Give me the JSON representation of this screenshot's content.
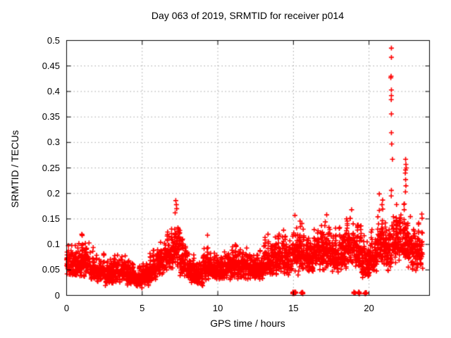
{
  "chart_data": {
    "type": "scatter",
    "title": "Day 063 of 2019, SRMTID for receiver p014",
    "xlabel": "GPS time / hours",
    "ylabel": "SRMTID / TECUs",
    "xlim": [
      0,
      24
    ],
    "ylim": [
      0,
      0.5
    ],
    "xticks": [
      0,
      5,
      10,
      15,
      20
    ],
    "xtick_labels": [
      "0",
      "5",
      "10",
      "15",
      "20"
    ],
    "yticks": [
      0,
      0.05,
      0.1,
      0.15,
      0.2,
      0.25,
      0.3,
      0.35,
      0.4,
      0.45,
      0.5
    ],
    "ytick_labels": [
      "0",
      "0.05",
      "0.1",
      "0.15",
      "0.2",
      "0.25",
      "0.3",
      "0.35",
      "0.4",
      "0.45",
      "0.5"
    ],
    "grid": {
      "show": true,
      "style": "dotted",
      "color": "#a0a0a0"
    },
    "legend": "none",
    "series_name": "SRMTID",
    "marker": {
      "shape": "plus",
      "color": "#ff0000",
      "size": 7
    },
    "points_per_hour": 140,
    "band_segments": [
      [
        0.0,
        0.5,
        0.03,
        0.105,
        0.06
      ],
      [
        0.5,
        1.0,
        0.02,
        0.11,
        0.058
      ],
      [
        1.0,
        1.5,
        0.025,
        0.123,
        0.062
      ],
      [
        1.5,
        2.0,
        0.02,
        0.095,
        0.055
      ],
      [
        2.0,
        2.5,
        0.015,
        0.09,
        0.05
      ],
      [
        2.5,
        3.0,
        0.01,
        0.082,
        0.046
      ],
      [
        3.0,
        3.5,
        0.012,
        0.09,
        0.05
      ],
      [
        3.5,
        4.0,
        0.015,
        0.098,
        0.052
      ],
      [
        4.0,
        4.5,
        0.01,
        0.08,
        0.044
      ],
      [
        4.5,
        5.0,
        0.008,
        0.065,
        0.038
      ],
      [
        5.0,
        5.5,
        0.012,
        0.075,
        0.042
      ],
      [
        5.5,
        6.0,
        0.02,
        0.095,
        0.05
      ],
      [
        6.0,
        6.5,
        0.025,
        0.11,
        0.057
      ],
      [
        6.5,
        7.0,
        0.03,
        0.135,
        0.066
      ],
      [
        7.0,
        7.5,
        0.04,
        0.165,
        0.095
      ],
      [
        7.5,
        8.0,
        0.025,
        0.12,
        0.065
      ],
      [
        8.0,
        8.5,
        0.015,
        0.09,
        0.05
      ],
      [
        8.5,
        9.0,
        0.012,
        0.075,
        0.044
      ],
      [
        9.0,
        9.5,
        0.02,
        0.1,
        0.054
      ],
      [
        9.5,
        10.0,
        0.02,
        0.09,
        0.05
      ],
      [
        10.0,
        10.5,
        0.018,
        0.092,
        0.05
      ],
      [
        10.5,
        11.0,
        0.022,
        0.1,
        0.054
      ],
      [
        11.0,
        11.5,
        0.022,
        0.105,
        0.055
      ],
      [
        11.5,
        12.0,
        0.02,
        0.1,
        0.05
      ],
      [
        12.0,
        12.5,
        0.018,
        0.092,
        0.05
      ],
      [
        12.5,
        13.0,
        0.022,
        0.1,
        0.054
      ],
      [
        13.0,
        13.5,
        0.025,
        0.115,
        0.058
      ],
      [
        13.5,
        14.0,
        0.025,
        0.122,
        0.06
      ],
      [
        14.0,
        14.5,
        0.03,
        0.132,
        0.064
      ],
      [
        14.5,
        15.0,
        0.025,
        0.125,
        0.06
      ],
      [
        15.0,
        15.5,
        0.028,
        0.155,
        0.066
      ],
      [
        15.5,
        16.0,
        0.03,
        0.145,
        0.07
      ],
      [
        16.0,
        16.5,
        0.03,
        0.135,
        0.07
      ],
      [
        16.5,
        17.0,
        0.035,
        0.148,
        0.075
      ],
      [
        17.0,
        17.5,
        0.035,
        0.155,
        0.08
      ],
      [
        17.5,
        18.0,
        0.03,
        0.14,
        0.075
      ],
      [
        18.0,
        18.5,
        0.035,
        0.145,
        0.075
      ],
      [
        18.5,
        19.0,
        0.04,
        0.165,
        0.085
      ],
      [
        19.0,
        19.5,
        0.035,
        0.155,
        0.08
      ],
      [
        19.5,
        20.0,
        0.015,
        0.12,
        0.058
      ],
      [
        20.0,
        20.5,
        0.025,
        0.13,
        0.068
      ],
      [
        20.5,
        21.0,
        0.035,
        0.185,
        0.085
      ],
      [
        21.0,
        21.5,
        0.035,
        0.16,
        0.08
      ],
      [
        21.5,
        22.0,
        0.045,
        0.185,
        0.095
      ],
      [
        22.0,
        22.5,
        0.05,
        0.19,
        0.1
      ],
      [
        22.5,
        23.0,
        0.035,
        0.165,
        0.09
      ],
      [
        23.0,
        23.55,
        0.03,
        0.16,
        0.105
      ]
    ],
    "outlier_points": [
      [
        7.22,
        0.186
      ],
      [
        7.26,
        0.178
      ],
      [
        7.28,
        0.17
      ],
      [
        7.18,
        0.162
      ],
      [
        9.32,
        0.118
      ],
      [
        13.32,
        0.12
      ],
      [
        14.35,
        0.128
      ],
      [
        15.1,
        0.157
      ],
      [
        15.56,
        0.141
      ],
      [
        17.2,
        0.158
      ],
      [
        18.85,
        0.168
      ],
      [
        20.68,
        0.199
      ],
      [
        20.9,
        0.187
      ],
      [
        20.86,
        0.178
      ],
      [
        21.48,
        0.485
      ],
      [
        21.48,
        0.467
      ],
      [
        21.46,
        0.43
      ],
      [
        21.44,
        0.427
      ],
      [
        21.48,
        0.403
      ],
      [
        21.48,
        0.392
      ],
      [
        21.47,
        0.384
      ],
      [
        21.48,
        0.356
      ],
      [
        21.48,
        0.319
      ],
      [
        21.5,
        0.297
      ],
      [
        21.55,
        0.267
      ],
      [
        21.48,
        0.206
      ],
      [
        21.47,
        0.195
      ],
      [
        22.42,
        0.267
      ],
      [
        22.44,
        0.257
      ],
      [
        22.46,
        0.25
      ],
      [
        22.42,
        0.246
      ],
      [
        22.4,
        0.24
      ],
      [
        22.42,
        0.227
      ],
      [
        22.44,
        0.215
      ],
      [
        22.41,
        0.203
      ]
    ],
    "zero_point_clusters": [
      [
        14.95,
        15.18
      ],
      [
        15.51,
        15.65
      ],
      [
        18.99,
        19.09
      ],
      [
        19.3,
        19.4
      ],
      [
        19.71,
        19.83
      ]
    ]
  }
}
